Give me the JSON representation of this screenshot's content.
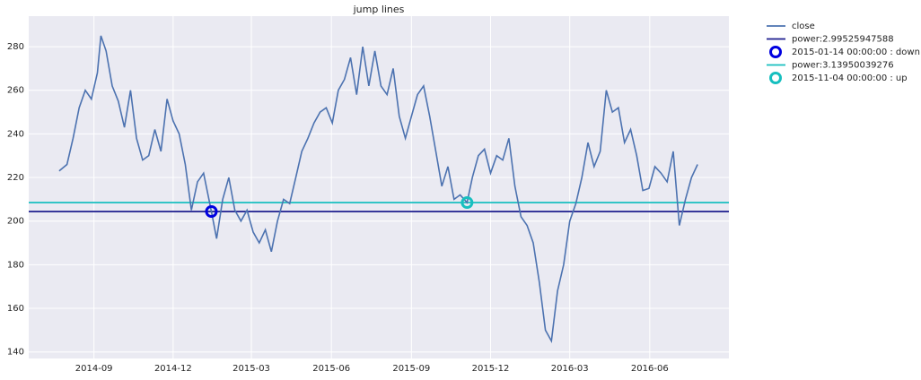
{
  "chart_data": {
    "type": "line",
    "title": "jump lines",
    "xlim": [
      "2014-06-18",
      "2016-08-31"
    ],
    "xticks": [
      {
        "value": "2014-09-01",
        "label": "2014-09"
      },
      {
        "value": "2014-12-01",
        "label": "2014-12"
      },
      {
        "value": "2015-03-01",
        "label": "2015-03"
      },
      {
        "value": "2015-06-01",
        "label": "2015-06"
      },
      {
        "value": "2015-09-01",
        "label": "2015-09"
      },
      {
        "value": "2015-12-01",
        "label": "2015-12"
      },
      {
        "value": "2016-03-01",
        "label": "2016-03"
      },
      {
        "value": "2016-06-01",
        "label": "2016-06"
      }
    ],
    "ylim": [
      137,
      294
    ],
    "yticks": [
      140,
      160,
      180,
      200,
      220,
      240,
      260,
      280
    ],
    "grid": true,
    "legend": "outside upper right",
    "series": [
      {
        "name": "close",
        "color": "#4c72b0",
        "type": "line",
        "x": [
          "2014-07-23",
          "2014-08-01",
          "2014-08-08",
          "2014-08-15",
          "2014-08-22",
          "2014-08-29",
          "2014-09-05",
          "2014-09-09",
          "2014-09-15",
          "2014-09-22",
          "2014-09-29",
          "2014-10-06",
          "2014-10-13",
          "2014-10-20",
          "2014-10-27",
          "2014-11-03",
          "2014-11-10",
          "2014-11-17",
          "2014-11-24",
          "2014-12-01",
          "2014-12-08",
          "2014-12-15",
          "2014-12-22",
          "2014-12-29",
          "2015-01-05",
          "2015-01-14",
          "2015-01-20",
          "2015-01-27",
          "2015-02-03",
          "2015-02-10",
          "2015-02-17",
          "2015-02-24",
          "2015-03-03",
          "2015-03-10",
          "2015-03-17",
          "2015-03-24",
          "2015-03-31",
          "2015-04-07",
          "2015-04-14",
          "2015-04-21",
          "2015-04-28",
          "2015-05-05",
          "2015-05-12",
          "2015-05-19",
          "2015-05-26",
          "2015-06-02",
          "2015-06-09",
          "2015-06-16",
          "2015-06-23",
          "2015-06-30",
          "2015-07-07",
          "2015-07-14",
          "2015-07-21",
          "2015-07-28",
          "2015-08-04",
          "2015-08-11",
          "2015-08-18",
          "2015-08-25",
          "2015-09-01",
          "2015-09-08",
          "2015-09-15",
          "2015-09-22",
          "2015-09-29",
          "2015-10-06",
          "2015-10-13",
          "2015-10-20",
          "2015-10-27",
          "2015-11-04",
          "2015-11-10",
          "2015-11-17",
          "2015-11-24",
          "2015-12-01",
          "2015-12-08",
          "2015-12-15",
          "2015-12-22",
          "2015-12-29",
          "2016-01-05",
          "2016-01-12",
          "2016-01-19",
          "2016-01-26",
          "2016-02-02",
          "2016-02-09",
          "2016-02-16",
          "2016-02-23",
          "2016-03-01",
          "2016-03-08",
          "2016-03-15",
          "2016-03-22",
          "2016-03-29",
          "2016-04-05",
          "2016-04-12",
          "2016-04-19",
          "2016-04-26",
          "2016-05-03",
          "2016-05-10",
          "2016-05-17",
          "2016-05-24",
          "2016-05-31",
          "2016-06-07",
          "2016-06-14",
          "2016-06-21",
          "2016-06-28",
          "2016-07-05",
          "2016-07-12",
          "2016-07-19",
          "2016-07-26"
        ],
        "values": [
          223,
          226,
          238,
          252,
          260,
          256,
          268,
          285,
          278,
          262,
          255,
          243,
          260,
          238,
          228,
          230,
          242,
          232,
          256,
          246,
          240,
          226,
          205,
          218,
          222,
          204.4,
          192,
          210,
          220,
          205,
          200,
          205,
          195,
          190,
          196,
          186,
          200,
          210,
          208,
          220,
          232,
          238,
          245,
          250,
          252,
          245,
          260,
          265,
          275,
          258,
          280,
          262,
          278,
          262,
          258,
          270,
          248,
          238,
          248,
          258,
          262,
          248,
          232,
          216,
          225,
          210,
          212,
          208.5,
          220,
          230,
          233,
          222,
          230,
          228,
          238,
          216,
          202,
          198,
          190,
          172,
          150,
          145,
          168,
          180,
          200,
          208,
          220,
          236,
          225,
          232,
          260,
          250,
          252,
          236,
          242,
          230,
          214,
          215,
          225,
          222,
          218,
          232,
          198,
          210,
          220,
          226
        ]
      },
      {
        "name": "power:2.99525947588",
        "color": "#1c1c8e",
        "type": "hline",
        "value": 204.4
      },
      {
        "name": "2015-01-14 00:00:00 :  down",
        "color": "#0000e0",
        "type": "point",
        "x": [
          "2015-01-14"
        ],
        "values": [
          204.4
        ]
      },
      {
        "name": "power:3.13950039276",
        "color": "#17bfbf",
        "type": "hline",
        "value": 208.5
      },
      {
        "name": "2015-11-04 00:00:00 :  up",
        "color": "#17bfbf",
        "type": "point",
        "x": [
          "2015-11-04"
        ],
        "values": [
          208.5
        ]
      }
    ]
  }
}
